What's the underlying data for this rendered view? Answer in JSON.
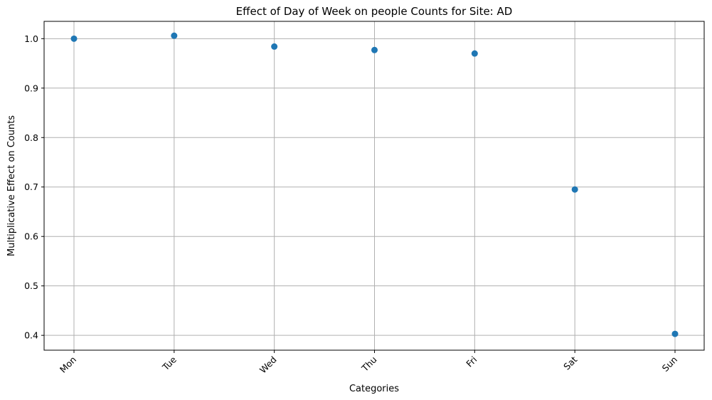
{
  "chart_data": {
    "type": "scatter",
    "title": "Effect of Day of Week on people Counts for Site: AD",
    "xlabel": "Categories",
    "ylabel": "Multiplicative Effect on Counts",
    "categories": [
      "Mon",
      "Tue",
      "Wed",
      "Thu",
      "Fri",
      "Sat",
      "Sun"
    ],
    "values": [
      1.0,
      1.006,
      0.984,
      0.977,
      0.97,
      0.695,
      0.403
    ],
    "ylim": [
      0.37,
      1.035
    ],
    "yticks": [
      "0.4",
      "0.5",
      "0.6",
      "0.7",
      "0.8",
      "0.9",
      "1.0"
    ],
    "grid": true,
    "x_tick_rotation_deg": 45,
    "marker_color": "#1f77b4"
  }
}
